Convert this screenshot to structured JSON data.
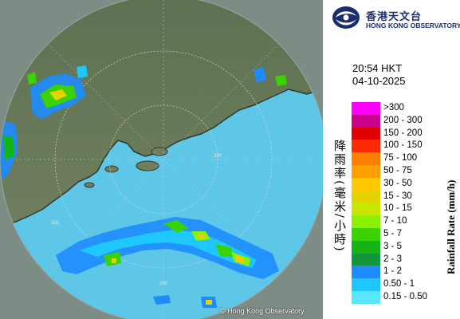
{
  "logo": {
    "zh": "香港天文台",
    "en": "HONG KONG OBSERVATORY",
    "icon": "hko-logo-icon"
  },
  "time": "20:54 HKT",
  "date": "04-10-2025",
  "legend": {
    "title_zh": "降雨率(毫米/小時)",
    "title_en": "Rainfall Rate (mm/h)",
    "items": [
      {
        "label": ">300",
        "color": "#ff00ff"
      },
      {
        "label": "200 - 300",
        "color": "#c8008c"
      },
      {
        "label": "150 - 200",
        "color": "#e00000"
      },
      {
        "label": "100 - 150",
        "color": "#ff2a00"
      },
      {
        "label": "75 - 100",
        "color": "#ff7f00"
      },
      {
        "label": "50 - 75",
        "color": "#ffa000"
      },
      {
        "label": "30 - 50",
        "color": "#ffc800"
      },
      {
        "label": "15 - 30",
        "color": "#e6d200"
      },
      {
        "label": "10 - 15",
        "color": "#c8e600"
      },
      {
        "label": "7 - 10",
        "color": "#8cf000"
      },
      {
        "label": "5 - 7",
        "color": "#3cd200"
      },
      {
        "label": "3 - 5",
        "color": "#14b414"
      },
      {
        "label": "2 - 3",
        "color": "#14963c"
      },
      {
        "label": "1 - 2",
        "color": "#1e8cff"
      },
      {
        "label": "0.50 - 1",
        "color": "#1ec8ff"
      },
      {
        "label": "0.15 - 0.50",
        "color": "#5ae6ff"
      }
    ]
  },
  "map": {
    "range_rings": [
      "200",
      "200",
      "200"
    ]
  },
  "copyright": "© Hong Kong Observatory"
}
